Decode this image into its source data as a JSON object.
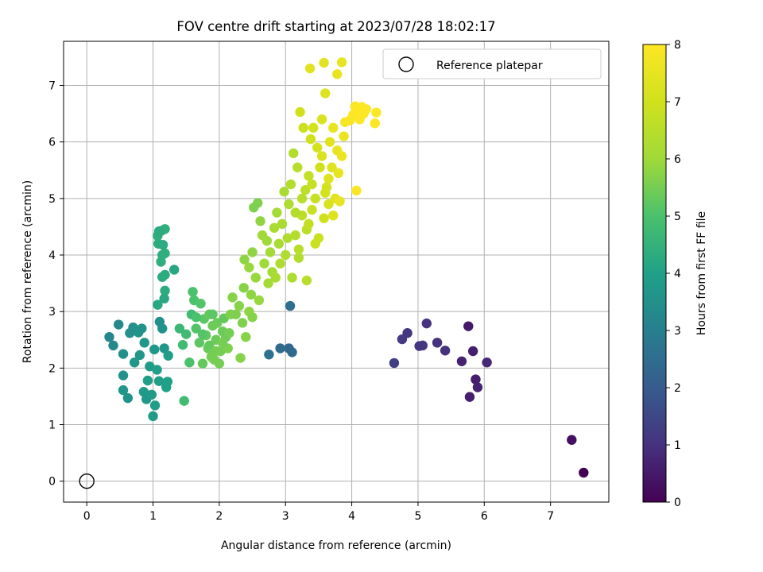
{
  "chart_data": {
    "type": "scatter",
    "title": "FOV centre drift starting at 2023/07/28 18:02:17",
    "xlabel": "Angular distance from reference (arcmin)",
    "ylabel": "Rotation from reference (arcmin)",
    "xlim": [
      -0.35,
      7.88
    ],
    "ylim": [
      -0.37,
      7.78
    ],
    "xticks": [
      "0",
      "1",
      "2",
      "3",
      "4",
      "5",
      "6",
      "7"
    ],
    "yticks": [
      "0",
      "1",
      "2",
      "3",
      "4",
      "5",
      "6",
      "7"
    ],
    "grid": true,
    "legend": {
      "label": "Reference platepar",
      "location": "top-right"
    },
    "reference_point": {
      "x": 0,
      "y": 0
    },
    "colorbar": {
      "label": "Hours from first FF file",
      "range": [
        0,
        8
      ],
      "ticks": [
        "0",
        "1",
        "2",
        "3",
        "4",
        "5",
        "6",
        "7",
        "8"
      ],
      "colormap": "viridis"
    },
    "points": [
      {
        "x": 7.5,
        "y": 0.15,
        "t": 0.0
      },
      {
        "x": 7.32,
        "y": 0.73,
        "t": 0.3
      },
      {
        "x": 5.76,
        "y": 2.74,
        "t": 0.5
      },
      {
        "x": 5.83,
        "y": 2.3,
        "t": 0.6
      },
      {
        "x": 5.66,
        "y": 2.12,
        "t": 0.7
      },
      {
        "x": 5.78,
        "y": 1.49,
        "t": 0.6
      },
      {
        "x": 5.87,
        "y": 1.8,
        "t": 0.6
      },
      {
        "x": 5.9,
        "y": 1.66,
        "t": 0.7
      },
      {
        "x": 6.04,
        "y": 2.1,
        "t": 0.8
      },
      {
        "x": 5.41,
        "y": 2.31,
        "t": 1.0
      },
      {
        "x": 5.29,
        "y": 2.45,
        "t": 1.0
      },
      {
        "x": 5.13,
        "y": 2.79,
        "t": 1.0
      },
      {
        "x": 5.07,
        "y": 2.4,
        "t": 1.1
      },
      {
        "x": 5.02,
        "y": 2.39,
        "t": 1.1
      },
      {
        "x": 4.84,
        "y": 2.62,
        "t": 1.1
      },
      {
        "x": 4.76,
        "y": 2.51,
        "t": 1.2
      },
      {
        "x": 4.64,
        "y": 2.09,
        "t": 1.3
      },
      {
        "x": 3.07,
        "y": 3.1,
        "t": 2.5
      },
      {
        "x": 3.05,
        "y": 2.35,
        "t": 2.3
      },
      {
        "x": 2.92,
        "y": 2.35,
        "t": 2.4
      },
      {
        "x": 3.1,
        "y": 2.28,
        "t": 2.4
      },
      {
        "x": 2.75,
        "y": 2.24,
        "t": 2.6
      },
      {
        "x": 0.34,
        "y": 2.55,
        "t": 3.2
      },
      {
        "x": 0.4,
        "y": 2.4,
        "t": 3.3
      },
      {
        "x": 0.48,
        "y": 2.77,
        "t": 3.3
      },
      {
        "x": 0.55,
        "y": 2.25,
        "t": 3.5
      },
      {
        "x": 0.55,
        "y": 1.87,
        "t": 3.6
      },
      {
        "x": 0.55,
        "y": 1.61,
        "t": 3.7
      },
      {
        "x": 0.62,
        "y": 1.47,
        "t": 3.6
      },
      {
        "x": 0.65,
        "y": 2.62,
        "t": 3.5
      },
      {
        "x": 0.72,
        "y": 2.1,
        "t": 3.7
      },
      {
        "x": 0.7,
        "y": 2.72,
        "t": 3.5
      },
      {
        "x": 0.78,
        "y": 2.63,
        "t": 3.6
      },
      {
        "x": 0.8,
        "y": 2.23,
        "t": 3.7
      },
      {
        "x": 0.83,
        "y": 2.7,
        "t": 3.6
      },
      {
        "x": 0.86,
        "y": 1.58,
        "t": 3.8
      },
      {
        "x": 0.87,
        "y": 2.45,
        "t": 3.7
      },
      {
        "x": 0.92,
        "y": 1.78,
        "t": 3.9
      },
      {
        "x": 0.95,
        "y": 2.03,
        "t": 3.8
      },
      {
        "x": 0.9,
        "y": 1.45,
        "t": 3.7
      },
      {
        "x": 0.98,
        "y": 1.53,
        "t": 3.8
      },
      {
        "x": 1.0,
        "y": 1.15,
        "t": 3.8
      },
      {
        "x": 1.03,
        "y": 1.34,
        "t": 3.9
      },
      {
        "x": 1.06,
        "y": 1.97,
        "t": 3.9
      },
      {
        "x": 1.1,
        "y": 2.82,
        "t": 3.5
      },
      {
        "x": 1.14,
        "y": 2.7,
        "t": 3.6
      },
      {
        "x": 1.17,
        "y": 2.35,
        "t": 3.7
      },
      {
        "x": 1.02,
        "y": 2.33,
        "t": 3.7
      },
      {
        "x": 1.2,
        "y": 1.66,
        "t": 4.0
      },
      {
        "x": 1.22,
        "y": 1.76,
        "t": 4.0
      },
      {
        "x": 1.23,
        "y": 2.22,
        "t": 3.9
      },
      {
        "x": 1.09,
        "y": 1.77,
        "t": 3.9
      },
      {
        "x": 1.07,
        "y": 3.12,
        "t": 4.2
      },
      {
        "x": 1.17,
        "y": 3.23,
        "t": 4.2
      },
      {
        "x": 1.18,
        "y": 3.37,
        "t": 4.3
      },
      {
        "x": 1.14,
        "y": 3.61,
        "t": 4.3
      },
      {
        "x": 1.18,
        "y": 3.65,
        "t": 4.3
      },
      {
        "x": 1.32,
        "y": 3.74,
        "t": 4.2
      },
      {
        "x": 1.12,
        "y": 3.88,
        "t": 4.4
      },
      {
        "x": 1.14,
        "y": 4.0,
        "t": 4.4
      },
      {
        "x": 1.18,
        "y": 4.03,
        "t": 4.4
      },
      {
        "x": 1.08,
        "y": 4.2,
        "t": 4.3
      },
      {
        "x": 1.15,
        "y": 4.18,
        "t": 4.3
      },
      {
        "x": 1.07,
        "y": 4.34,
        "t": 4.4
      },
      {
        "x": 1.13,
        "y": 4.43,
        "t": 4.4
      },
      {
        "x": 1.18,
        "y": 4.46,
        "t": 4.4
      },
      {
        "x": 1.09,
        "y": 4.42,
        "t": 4.3
      },
      {
        "x": 1.47,
        "y": 1.42,
        "t": 4.8
      },
      {
        "x": 1.45,
        "y": 2.41,
        "t": 4.8
      },
      {
        "x": 1.5,
        "y": 2.6,
        "t": 4.8
      },
      {
        "x": 1.4,
        "y": 2.7,
        "t": 4.7
      },
      {
        "x": 1.55,
        "y": 2.1,
        "t": 5.0
      },
      {
        "x": 1.58,
        "y": 2.95,
        "t": 4.8
      },
      {
        "x": 1.6,
        "y": 3.35,
        "t": 5.0
      },
      {
        "x": 1.62,
        "y": 3.2,
        "t": 5.0
      },
      {
        "x": 1.65,
        "y": 2.7,
        "t": 5.1
      },
      {
        "x": 1.7,
        "y": 2.45,
        "t": 5.2
      },
      {
        "x": 1.72,
        "y": 3.14,
        "t": 5.1
      },
      {
        "x": 1.75,
        "y": 2.08,
        "t": 5.3
      },
      {
        "x": 1.77,
        "y": 2.87,
        "t": 5.2
      },
      {
        "x": 1.8,
        "y": 2.58,
        "t": 5.3
      },
      {
        "x": 1.83,
        "y": 2.35,
        "t": 5.4
      },
      {
        "x": 1.85,
        "y": 2.95,
        "t": 5.3
      },
      {
        "x": 1.88,
        "y": 2.2,
        "t": 5.5
      },
      {
        "x": 1.9,
        "y": 2.75,
        "t": 5.4
      },
      {
        "x": 1.92,
        "y": 2.15,
        "t": 5.5
      },
      {
        "x": 1.95,
        "y": 2.5,
        "t": 5.4
      },
      {
        "x": 1.97,
        "y": 2.8,
        "t": 5.4
      },
      {
        "x": 2.0,
        "y": 2.08,
        "t": 5.5
      },
      {
        "x": 2.02,
        "y": 2.3,
        "t": 5.5
      },
      {
        "x": 2.05,
        "y": 2.65,
        "t": 5.4
      },
      {
        "x": 2.07,
        "y": 2.88,
        "t": 5.3
      },
      {
        "x": 2.1,
        "y": 2.55,
        "t": 5.4
      },
      {
        "x": 2.13,
        "y": 2.35,
        "t": 5.6
      },
      {
        "x": 2.17,
        "y": 2.95,
        "t": 5.6
      },
      {
        "x": 2.2,
        "y": 3.25,
        "t": 5.7
      },
      {
        "x": 2.25,
        "y": 2.95,
        "t": 5.6
      },
      {
        "x": 2.3,
        "y": 3.1,
        "t": 5.7
      },
      {
        "x": 2.32,
        "y": 2.18,
        "t": 5.7
      },
      {
        "x": 2.35,
        "y": 2.8,
        "t": 5.6
      },
      {
        "x": 2.37,
        "y": 3.42,
        "t": 5.7
      },
      {
        "x": 2.4,
        "y": 2.55,
        "t": 5.7
      },
      {
        "x": 2.45,
        "y": 3.0,
        "t": 5.8
      },
      {
        "x": 2.48,
        "y": 3.3,
        "t": 5.8
      },
      {
        "x": 2.5,
        "y": 2.9,
        "t": 5.7
      },
      {
        "x": 1.85,
        "y": 2.4,
        "t": 5.3
      },
      {
        "x": 1.95,
        "y": 2.3,
        "t": 5.5
      },
      {
        "x": 2.05,
        "y": 2.45,
        "t": 5.5
      },
      {
        "x": 1.75,
        "y": 2.6,
        "t": 5.1
      },
      {
        "x": 1.65,
        "y": 2.9,
        "t": 5.0
      },
      {
        "x": 1.9,
        "y": 2.95,
        "t": 5.2
      },
      {
        "x": 2.15,
        "y": 2.62,
        "t": 5.5
      },
      {
        "x": 2.38,
        "y": 3.92,
        "t": 5.8
      },
      {
        "x": 2.45,
        "y": 3.78,
        "t": 5.9
      },
      {
        "x": 2.5,
        "y": 4.05,
        "t": 5.8
      },
      {
        "x": 2.52,
        "y": 4.84,
        "t": 5.6
      },
      {
        "x": 2.55,
        "y": 3.6,
        "t": 5.9
      },
      {
        "x": 2.58,
        "y": 4.92,
        "t": 5.6
      },
      {
        "x": 2.6,
        "y": 3.2,
        "t": 5.9
      },
      {
        "x": 2.62,
        "y": 4.6,
        "t": 5.8
      },
      {
        "x": 2.65,
        "y": 4.35,
        "t": 6.0
      },
      {
        "x": 2.68,
        "y": 3.85,
        "t": 6.0
      },
      {
        "x": 2.72,
        "y": 4.25,
        "t": 6.0
      },
      {
        "x": 2.74,
        "y": 3.5,
        "t": 6.1
      },
      {
        "x": 2.77,
        "y": 4.05,
        "t": 6.1
      },
      {
        "x": 2.8,
        "y": 3.7,
        "t": 6.1
      },
      {
        "x": 2.83,
        "y": 4.48,
        "t": 6.2
      },
      {
        "x": 2.85,
        "y": 3.6,
        "t": 6.2
      },
      {
        "x": 2.87,
        "y": 4.75,
        "t": 6.1
      },
      {
        "x": 2.9,
        "y": 4.2,
        "t": 6.2
      },
      {
        "x": 2.92,
        "y": 3.85,
        "t": 6.3
      },
      {
        "x": 2.95,
        "y": 4.55,
        "t": 6.2
      },
      {
        "x": 2.98,
        "y": 5.12,
        "t": 6.2
      },
      {
        "x": 3.0,
        "y": 4.0,
        "t": 6.3
      },
      {
        "x": 3.03,
        "y": 4.3,
        "t": 6.3
      },
      {
        "x": 3.05,
        "y": 4.9,
        "t": 6.3
      },
      {
        "x": 3.08,
        "y": 5.25,
        "t": 6.4
      },
      {
        "x": 3.1,
        "y": 3.6,
        "t": 6.3
      },
      {
        "x": 3.12,
        "y": 5.8,
        "t": 6.4
      },
      {
        "x": 3.15,
        "y": 4.35,
        "t": 6.4
      },
      {
        "x": 3.18,
        "y": 5.55,
        "t": 6.5
      },
      {
        "x": 3.2,
        "y": 4.1,
        "t": 6.5
      },
      {
        "x": 3.22,
        "y": 6.53,
        "t": 7.0
      },
      {
        "x": 3.25,
        "y": 4.7,
        "t": 6.6
      },
      {
        "x": 3.27,
        "y": 6.25,
        "t": 6.9
      },
      {
        "x": 3.3,
        "y": 5.15,
        "t": 6.6
      },
      {
        "x": 3.32,
        "y": 4.45,
        "t": 6.6
      },
      {
        "x": 3.35,
        "y": 5.4,
        "t": 6.7
      },
      {
        "x": 3.38,
        "y": 6.05,
        "t": 7.0
      },
      {
        "x": 3.4,
        "y": 4.8,
        "t": 6.8
      },
      {
        "x": 3.42,
        "y": 6.25,
        "t": 7.1
      },
      {
        "x": 3.45,
        "y": 5.0,
        "t": 6.8
      },
      {
        "x": 3.48,
        "y": 5.9,
        "t": 7.1
      },
      {
        "x": 3.5,
        "y": 4.3,
        "t": 6.9
      },
      {
        "x": 3.52,
        "y": 5.55,
        "t": 7.0
      },
      {
        "x": 3.55,
        "y": 6.4,
        "t": 7.2
      },
      {
        "x": 3.58,
        "y": 4.65,
        "t": 7.0
      },
      {
        "x": 3.6,
        "y": 6.86,
        "t": 7.3
      },
      {
        "x": 3.62,
        "y": 5.2,
        "t": 7.1
      },
      {
        "x": 3.65,
        "y": 4.9,
        "t": 7.2
      },
      {
        "x": 3.67,
        "y": 6.0,
        "t": 7.4
      },
      {
        "x": 3.7,
        "y": 5.55,
        "t": 7.3
      },
      {
        "x": 3.72,
        "y": 6.25,
        "t": 7.5
      },
      {
        "x": 3.75,
        "y": 5.0,
        "t": 7.4
      },
      {
        "x": 3.78,
        "y": 5.85,
        "t": 7.5
      },
      {
        "x": 3.8,
        "y": 5.45,
        "t": 7.5
      },
      {
        "x": 3.82,
        "y": 4.95,
        "t": 7.5
      },
      {
        "x": 3.85,
        "y": 5.75,
        "t": 7.6
      },
      {
        "x": 3.88,
        "y": 6.1,
        "t": 7.6
      },
      {
        "x": 3.35,
        "y": 4.55,
        "t": 6.7
      },
      {
        "x": 3.45,
        "y": 4.2,
        "t": 6.9
      },
      {
        "x": 3.55,
        "y": 5.75,
        "t": 7.2
      },
      {
        "x": 3.65,
        "y": 5.35,
        "t": 7.3
      },
      {
        "x": 3.25,
        "y": 5.0,
        "t": 6.5
      },
      {
        "x": 3.15,
        "y": 4.75,
        "t": 6.4
      },
      {
        "x": 3.4,
        "y": 5.25,
        "t": 6.8
      },
      {
        "x": 3.6,
        "y": 5.1,
        "t": 7.1
      },
      {
        "x": 3.72,
        "y": 4.7,
        "t": 7.3
      },
      {
        "x": 3.32,
        "y": 3.55,
        "t": 6.5
      },
      {
        "x": 3.2,
        "y": 3.95,
        "t": 6.4
      },
      {
        "x": 3.37,
        "y": 7.3,
        "t": 7.4
      },
      {
        "x": 3.58,
        "y": 7.4,
        "t": 7.4
      },
      {
        "x": 3.78,
        "y": 7.2,
        "t": 7.5
      },
      {
        "x": 3.85,
        "y": 7.41,
        "t": 7.5
      },
      {
        "x": 3.9,
        "y": 6.35,
        "t": 7.8
      },
      {
        "x": 3.97,
        "y": 6.38,
        "t": 7.9
      },
      {
        "x": 4.02,
        "y": 6.48,
        "t": 7.9
      },
      {
        "x": 4.05,
        "y": 6.63,
        "t": 7.9
      },
      {
        "x": 4.08,
        "y": 6.55,
        "t": 8.0
      },
      {
        "x": 4.12,
        "y": 6.4,
        "t": 8.0
      },
      {
        "x": 4.15,
        "y": 6.62,
        "t": 8.0
      },
      {
        "x": 4.18,
        "y": 6.5,
        "t": 8.0
      },
      {
        "x": 4.22,
        "y": 6.58,
        "t": 8.0
      },
      {
        "x": 4.35,
        "y": 6.33,
        "t": 8.0
      },
      {
        "x": 4.37,
        "y": 6.52,
        "t": 8.0
      },
      {
        "x": 4.07,
        "y": 5.14,
        "t": 7.9
      }
    ]
  }
}
